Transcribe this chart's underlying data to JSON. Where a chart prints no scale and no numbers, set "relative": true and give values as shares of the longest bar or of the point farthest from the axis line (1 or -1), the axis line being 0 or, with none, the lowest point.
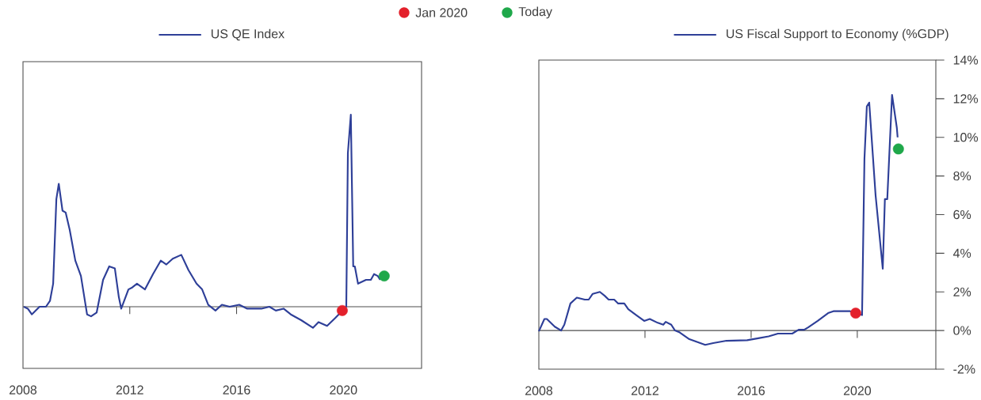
{
  "chart_data": [
    {
      "type": "line",
      "relative": true,
      "xlim": [
        2008,
        2022.93
      ],
      "xticks": [
        2008,
        2012,
        2016,
        2020
      ],
      "tick_labels": "x",
      "legend": "top",
      "x": [
        2008.03,
        2008.18,
        2008.33,
        2008.62,
        2008.86,
        2009.01,
        2009.13,
        2009.25,
        2009.34,
        2009.48,
        2009.6,
        2009.75,
        2009.96,
        2010.17,
        2010.4,
        2010.55,
        2010.76,
        2011.0,
        2011.23,
        2011.44,
        2011.59,
        2011.68,
        2011.95,
        2012.09,
        2012.27,
        2012.57,
        2012.87,
        2013.16,
        2013.37,
        2013.61,
        2013.93,
        2014.2,
        2014.5,
        2014.71,
        2014.94,
        2015.21,
        2015.45,
        2015.74,
        2016.1,
        2016.4,
        2016.93,
        2017.23,
        2017.47,
        2017.76,
        2018.03,
        2018.42,
        2018.86,
        2019.07,
        2019.39,
        2019.69,
        2019.96,
        2020.11,
        2020.17,
        2020.28,
        2020.37,
        2020.43,
        2020.55,
        2020.85,
        2021.03,
        2021.15,
        2021.29,
        2021.38
      ],
      "series": [
        {
          "name": "US QE Index",
          "color": "#2e3f98",
          "values": [
            0.0,
            -0.01,
            -0.04,
            0.0,
            0.0,
            0.03,
            0.12,
            0.56,
            0.64,
            0.5,
            0.49,
            0.4,
            0.24,
            0.16,
            -0.04,
            -0.05,
            -0.03,
            0.14,
            0.21,
            0.2,
            0.05,
            -0.01,
            0.09,
            0.1,
            0.12,
            0.09,
            0.17,
            0.24,
            0.22,
            0.25,
            0.27,
            0.19,
            0.12,
            0.09,
            0.01,
            -0.02,
            0.01,
            0.0,
            0.01,
            -0.01,
            -0.01,
            0.0,
            -0.02,
            -0.01,
            -0.04,
            -0.07,
            -0.11,
            -0.08,
            -0.1,
            -0.06,
            null,
            0.0,
            0.8,
            1.0,
            0.21,
            0.21,
            0.12,
            0.14,
            0.14,
            0.17,
            0.16,
            0.14
          ]
        },
        {
          "type": "scatter",
          "name": "Jan 2020",
          "color": "#e3202b",
          "x": [
            2019.96
          ],
          "values": [
            -0.02
          ]
        },
        {
          "type": "scatter",
          "name": "Today",
          "color": "#1fa84a",
          "x": [
            2021.53
          ],
          "values": [
            0.16
          ]
        }
      ]
    },
    {
      "type": "line",
      "xlim": [
        2008,
        2022.96
      ],
      "xticks": [
        2008,
        2012,
        2016,
        2020
      ],
      "ylim": [
        -2,
        14
      ],
      "legend": "top",
      "yticks": [
        {
          "value": -2,
          "label": "-2%"
        },
        {
          "value": 0,
          "label": "0%"
        },
        {
          "value": 2,
          "label": "2%"
        },
        {
          "value": 4,
          "label": "4%"
        },
        {
          "value": 6,
          "label": "6%"
        },
        {
          "value": 8,
          "label": "8%"
        },
        {
          "value": 10,
          "label": "10%"
        },
        {
          "value": 12,
          "label": "12%"
        },
        {
          "value": 14,
          "label": "14%"
        }
      ],
      "ref_lines": [
        {
          "axis": "y",
          "value": 0
        }
      ],
      "x": [
        2008.0,
        2008.21,
        2008.3,
        2008.6,
        2008.84,
        2008.96,
        2009.19,
        2009.43,
        2009.73,
        2009.88,
        2010.03,
        2010.3,
        2010.48,
        2010.63,
        2010.84,
        2010.99,
        2011.22,
        2011.37,
        2011.67,
        2011.97,
        2012.18,
        2012.48,
        2012.69,
        2012.78,
        2012.99,
        2013.13,
        2013.31,
        2013.67,
        2014.27,
        2014.57,
        2015.07,
        2015.85,
        2016.27,
        2016.66,
        2017.01,
        2017.55,
        2017.79,
        2018.0,
        2018.15,
        2018.51,
        2018.9,
        2019.1,
        2019.73,
        2019.94,
        2020.18,
        2020.27,
        2020.36,
        2020.45,
        2020.69,
        2020.96,
        2021.04,
        2021.13,
        2021.31,
        2021.49,
        2021.52
      ],
      "series": [
        {
          "name": "US Fiscal Support to Economy (%GDP)",
          "color": "#2e3f98",
          "values": [
            -0.04,
            0.6,
            0.6,
            0.2,
            0.0,
            0.3,
            1.4,
            1.7,
            1.6,
            1.6,
            1.9,
            2.0,
            1.8,
            1.6,
            1.6,
            1.4,
            1.4,
            1.1,
            0.8,
            0.5,
            0.6,
            0.4,
            0.3,
            0.45,
            0.3,
            0.0,
            -0.1,
            -0.45,
            -0.74,
            -0.65,
            -0.53,
            -0.5,
            -0.4,
            -0.3,
            -0.16,
            -0.16,
            0.04,
            0.04,
            0.16,
            0.5,
            0.9,
            1.0,
            1.0,
            null,
            0.8,
            8.9,
            11.6,
            11.8,
            7.0,
            3.2,
            6.8,
            6.8,
            12.2,
            10.5,
            10.0
          ]
        },
        {
          "type": "scatter",
          "color": "#e3202b",
          "x": [
            2019.94
          ],
          "values": [
            0.9
          ]
        },
        {
          "type": "scatter",
          "color": "#1fa84a",
          "x": [
            2021.55
          ],
          "values": [
            9.4
          ]
        }
      ]
    }
  ]
}
